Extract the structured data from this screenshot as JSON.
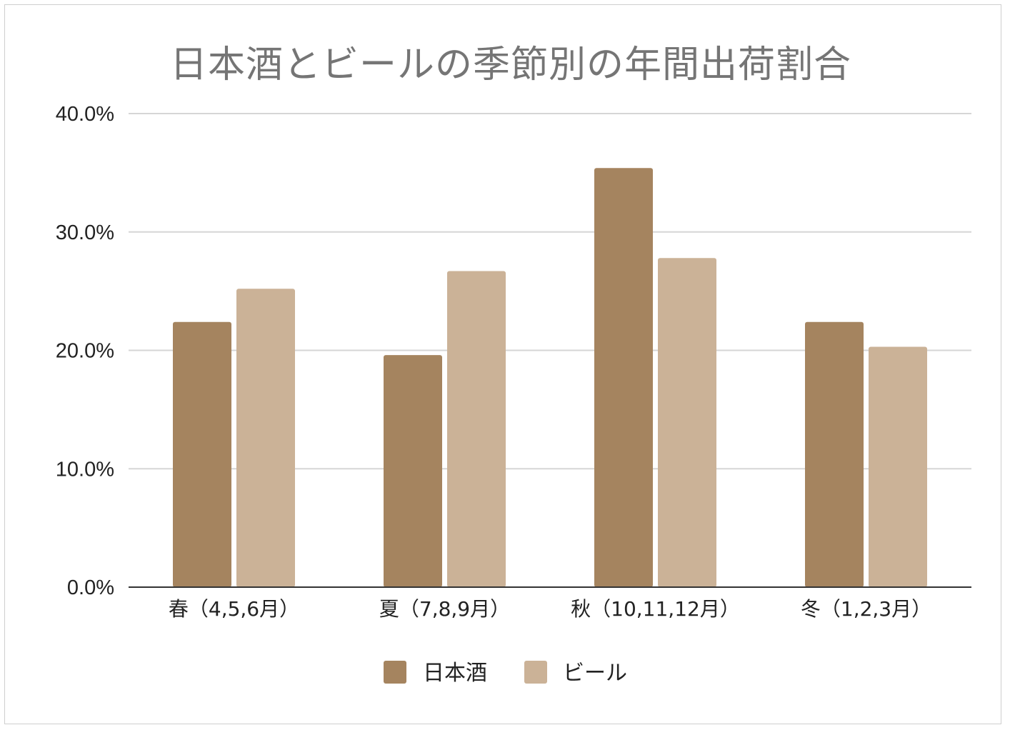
{
  "chart_data": {
    "type": "bar",
    "title": "日本酒とビールの季節別の年間出荷割合",
    "xlabel": "",
    "ylabel": "",
    "categories": [
      "春（4,5,6月）",
      "夏（7,8,9月）",
      "秋（10,11,12月）",
      "冬（1,2,3月）"
    ],
    "series": [
      {
        "name": "日本酒",
        "color": "#a5845f",
        "values": [
          22.4,
          19.6,
          35.4,
          22.4
        ]
      },
      {
        "name": "ビール",
        "color": "#cbb297",
        "values": [
          25.2,
          26.7,
          27.8,
          20.3
        ]
      }
    ],
    "ylim": [
      0,
      40
    ],
    "yticks": [
      "0.0%",
      "10.0%",
      "20.0%",
      "30.0%",
      "40.0%"
    ],
    "grid": true,
    "legend_position": "bottom"
  }
}
